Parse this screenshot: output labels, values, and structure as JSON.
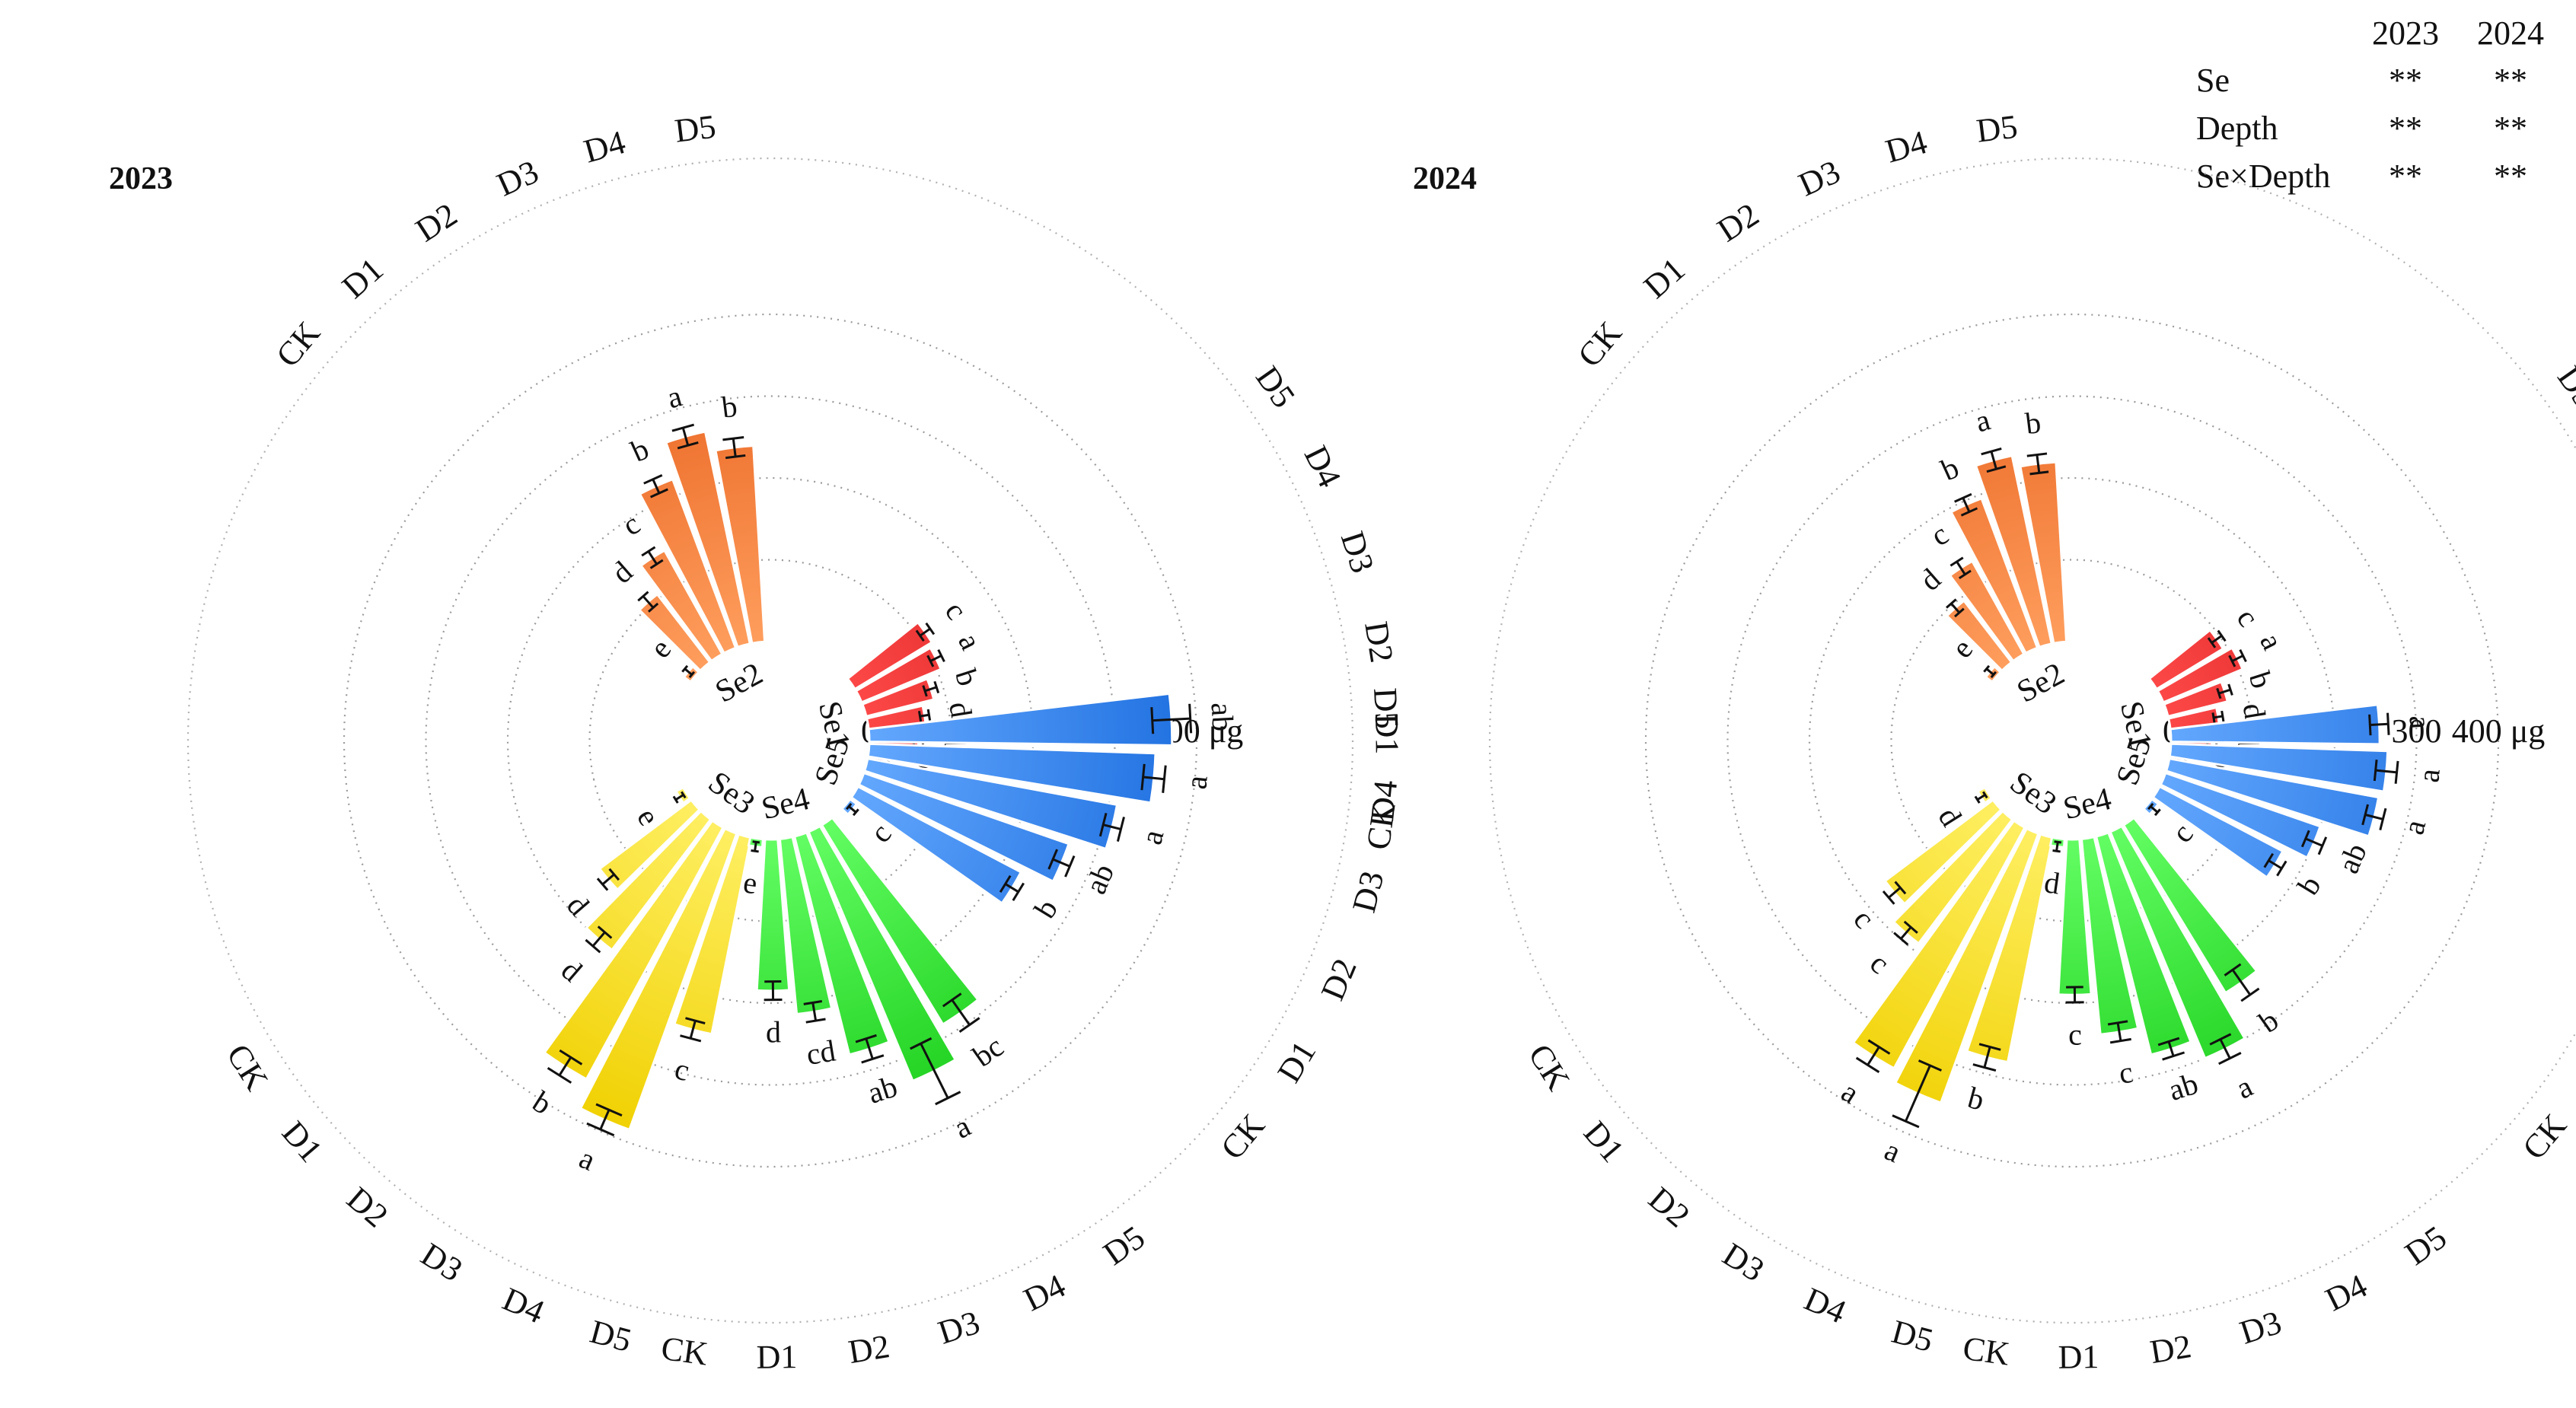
{
  "chart_data": [
    {
      "type": "circular-bar",
      "title": "2023",
      "unit": "μg",
      "radial_ticks": [
        0,
        100,
        200,
        300,
        400
      ],
      "radial_max": 400,
      "depth_levels": [
        "CK",
        "D1",
        "D2",
        "D3",
        "D4",
        "D5"
      ],
      "groups": [
        {
          "name": "Se1",
          "values": [
            20,
            60,
            70,
            85,
            105,
            110
          ],
          "errors": [
            6,
            6,
            6,
            8,
            8,
            8
          ],
          "letters": [
            "e",
            "d",
            "d",
            "b",
            "a",
            "c"
          ]
        },
        {
          "name": "Se2",
          "values": [
            10,
            105,
            145,
            220,
            265,
            240
          ],
          "errors": [
            6,
            10,
            10,
            10,
            12,
            12
          ],
          "letters": [
            "e",
            "d",
            "c",
            "b",
            "a",
            "b"
          ]
        },
        {
          "name": "Se3",
          "values": [
            10,
            140,
            200,
            350,
            385,
            245
          ],
          "errors": [
            6,
            10,
            12,
            14,
            14,
            12
          ],
          "letters": [
            "e",
            "d",
            "d",
            "b",
            "a",
            "c"
          ]
        },
        {
          "name": "Se4",
          "values": [
            10,
            185,
            215,
            275,
            330,
            285
          ],
          "errors": [
            6,
            12,
            12,
            14,
            40,
            20
          ],
          "letters": [
            "e",
            "d",
            "cd",
            "ab",
            "a",
            "bc"
          ]
        },
        {
          "name": "Se5",
          "values": [
            10,
            225,
            265,
            310,
            350,
            370
          ],
          "errors": [
            6,
            10,
            12,
            12,
            14,
            25
          ],
          "letters": [
            "c",
            "b",
            "ab",
            "a",
            "a",
            "ab"
          ]
        }
      ],
      "group_colors": {
        "Se1": [
          "#c81010",
          "#ff4a4a"
        ],
        "Se2": [
          "#e8601c",
          "#ffa060"
        ],
        "Se3": [
          "#f0d000",
          "#fff066"
        ],
        "Se4": [
          "#18cc18",
          "#66ff66"
        ],
        "Se5": [
          "#1e6fe0",
          "#66aaff"
        ]
      }
    },
    {
      "type": "circular-bar",
      "title": "2024",
      "unit": "μg",
      "radial_ticks": [
        0,
        100,
        200,
        300,
        400
      ],
      "radial_max": 400,
      "depth_levels": [
        "CK",
        "D1",
        "D2",
        "D3",
        "D4",
        "D5"
      ],
      "groups": [
        {
          "name": "Se1",
          "values": [
            15,
            50,
            60,
            75,
            105,
            95
          ],
          "errors": [
            5,
            6,
            6,
            8,
            8,
            8
          ],
          "letters": [
            "e",
            "d",
            "d",
            "b",
            "a",
            "c"
          ]
        },
        {
          "name": "Se2",
          "values": [
            10,
            95,
            130,
            195,
            235,
            220
          ],
          "errors": [
            6,
            8,
            10,
            10,
            12,
            12
          ],
          "letters": [
            "e",
            "d",
            "c",
            "b",
            "a",
            "b"
          ]
        },
        {
          "name": "Se3",
          "values": [
            10,
            165,
            190,
            335,
            350,
            280
          ],
          "errors": [
            6,
            10,
            10,
            14,
            40,
            14
          ],
          "letters": [
            "d",
            "c",
            "c",
            "a",
            "a",
            "b"
          ]
        },
        {
          "name": "Se4",
          "values": [
            10,
            190,
            240,
            275,
            300,
            240
          ],
          "errors": [
            6,
            10,
            12,
            10,
            14,
            20
          ],
          "letters": [
            "d",
            "c",
            "c",
            "ab",
            "a",
            "b"
          ]
        },
        {
          "name": "Se5",
          "values": [
            10,
            170,
            200,
            260,
            265,
            255
          ],
          "errors": [
            6,
            10,
            12,
            12,
            14,
            12
          ],
          "letters": [
            "c",
            "b",
            "ab",
            "a",
            "a",
            "a"
          ]
        }
      ],
      "group_colors": {
        "Se1": [
          "#c81010",
          "#ff4a4a"
        ],
        "Se2": [
          "#e8601c",
          "#ffa060"
        ],
        "Se3": [
          "#f0d000",
          "#fff066"
        ],
        "Se4": [
          "#18cc18",
          "#66ff66"
        ],
        "Se5": [
          "#1e6fe0",
          "#66aaff"
        ]
      }
    }
  ],
  "stats_table": {
    "headers": [
      "",
      "2023",
      "2024"
    ],
    "rows": [
      {
        "factor": "Se",
        "y2023": "**",
        "y2024": "**"
      },
      {
        "factor": "Depth",
        "y2023": "**",
        "y2024": "**"
      },
      {
        "factor": "Se×Depth",
        "y2023": "**",
        "y2024": "**"
      }
    ]
  }
}
